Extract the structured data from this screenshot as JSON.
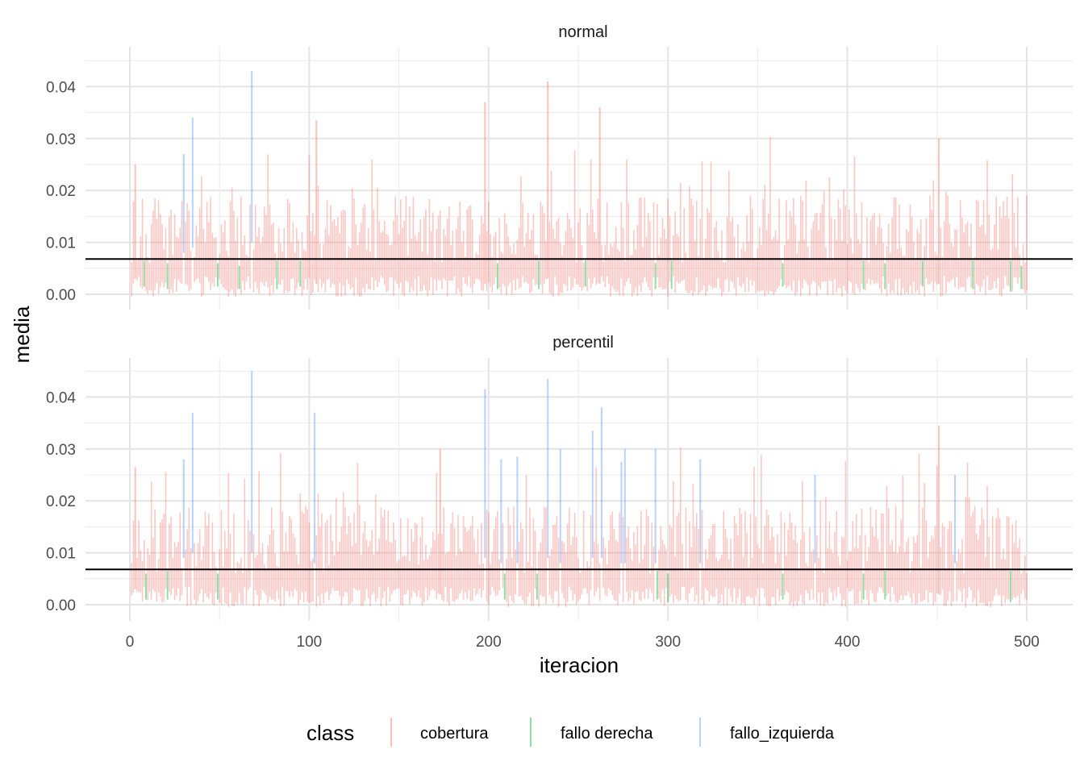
{
  "chart_data": {
    "type": "bar",
    "facets": [
      {
        "label": "normal",
        "hline": 0.0068,
        "highlights": [
          {
            "x": 3,
            "class": "cobertura",
            "lo": 0.003,
            "hi": 0.025
          },
          {
            "x": 30,
            "class": "fallo_izquierda",
            "lo": 0.008,
            "hi": 0.027
          },
          {
            "x": 35,
            "class": "fallo_izquierda",
            "lo": 0.009,
            "hi": 0.034
          },
          {
            "x": 68,
            "class": "fallo_izquierda",
            "lo": 0.01,
            "hi": 0.043
          },
          {
            "x": 104,
            "class": "cobertura",
            "lo": 0.002,
            "hi": 0.0335
          },
          {
            "x": 198,
            "class": "cobertura",
            "lo": 0.002,
            "hi": 0.037
          },
          {
            "x": 233,
            "class": "cobertura",
            "lo": 0.003,
            "hi": 0.041
          },
          {
            "x": 262,
            "class": "cobertura",
            "lo": 0.002,
            "hi": 0.036
          },
          {
            "x": 451,
            "class": "cobertura",
            "lo": 0.002,
            "hi": 0.03
          },
          {
            "x": 8,
            "class": "fallo derecha",
            "lo": 0.0015,
            "hi": 0.0065
          },
          {
            "x": 21,
            "class": "fallo derecha",
            "lo": 0.001,
            "hi": 0.006
          },
          {
            "x": 49,
            "class": "fallo derecha",
            "lo": 0.0015,
            "hi": 0.006
          },
          {
            "x": 61,
            "class": "fallo derecha",
            "lo": 0.001,
            "hi": 0.0055
          },
          {
            "x": 82,
            "class": "fallo derecha",
            "lo": 0.001,
            "hi": 0.0065
          },
          {
            "x": 95,
            "class": "fallo derecha",
            "lo": 0.0015,
            "hi": 0.0065
          },
          {
            "x": 205,
            "class": "fallo derecha",
            "lo": 0.001,
            "hi": 0.006
          },
          {
            "x": 228,
            "class": "fallo derecha",
            "lo": 0.001,
            "hi": 0.0065
          },
          {
            "x": 254,
            "class": "fallo derecha",
            "lo": 0.0015,
            "hi": 0.0065
          },
          {
            "x": 293,
            "class": "fallo derecha",
            "lo": 0.001,
            "hi": 0.006
          },
          {
            "x": 302,
            "class": "fallo derecha",
            "lo": 0.001,
            "hi": 0.0065
          },
          {
            "x": 364,
            "class": "fallo derecha",
            "lo": 0.0015,
            "hi": 0.006
          },
          {
            "x": 409,
            "class": "fallo derecha",
            "lo": 0.001,
            "hi": 0.0065
          },
          {
            "x": 421,
            "class": "fallo derecha",
            "lo": 0.001,
            "hi": 0.006
          },
          {
            "x": 442,
            "class": "fallo derecha",
            "lo": 0.0015,
            "hi": 0.0065
          },
          {
            "x": 470,
            "class": "fallo derecha",
            "lo": 0.001,
            "hi": 0.0065
          },
          {
            "x": 491,
            "class": "fallo derecha",
            "lo": 0.0005,
            "hi": 0.0065
          },
          {
            "x": 497,
            "class": "fallo derecha",
            "lo": 0.001,
            "hi": 0.0055
          }
        ]
      },
      {
        "label": "percentil",
        "hline": 0.0068,
        "highlights": [
          {
            "x": 3,
            "class": "cobertura",
            "lo": 0.003,
            "hi": 0.0265
          },
          {
            "x": 30,
            "class": "fallo_izquierda",
            "lo": 0.009,
            "hi": 0.028
          },
          {
            "x": 35,
            "class": "fallo_izquierda",
            "lo": 0.01,
            "hi": 0.037
          },
          {
            "x": 68,
            "class": "fallo_izquierda",
            "lo": 0.01,
            "hi": 0.045
          },
          {
            "x": 103,
            "class": "fallo_izquierda",
            "lo": 0.008,
            "hi": 0.037
          },
          {
            "x": 173,
            "class": "cobertura",
            "lo": 0.002,
            "hi": 0.03
          },
          {
            "x": 198,
            "class": "fallo_izquierda",
            "lo": 0.009,
            "hi": 0.0415
          },
          {
            "x": 207,
            "class": "fallo_izquierda",
            "lo": 0.008,
            "hi": 0.028
          },
          {
            "x": 216,
            "class": "fallo_izquierda",
            "lo": 0.008,
            "hi": 0.0285
          },
          {
            "x": 233,
            "class": "fallo_izquierda",
            "lo": 0.009,
            "hi": 0.0435
          },
          {
            "x": 240,
            "class": "fallo_izquierda",
            "lo": 0.008,
            "hi": 0.03
          },
          {
            "x": 258,
            "class": "fallo_izquierda",
            "lo": 0.009,
            "hi": 0.0335
          },
          {
            "x": 263,
            "class": "fallo_izquierda",
            "lo": 0.009,
            "hi": 0.038
          },
          {
            "x": 274,
            "class": "fallo_izquierda",
            "lo": 0.008,
            "hi": 0.0275
          },
          {
            "x": 276,
            "class": "fallo_izquierda",
            "lo": 0.008,
            "hi": 0.03
          },
          {
            "x": 293,
            "class": "fallo_izquierda",
            "lo": 0.008,
            "hi": 0.03
          },
          {
            "x": 318,
            "class": "fallo_izquierda",
            "lo": 0.008,
            "hi": 0.028
          },
          {
            "x": 382,
            "class": "fallo_izquierda",
            "lo": 0.008,
            "hi": 0.025
          },
          {
            "x": 451,
            "class": "cobertura",
            "lo": 0.002,
            "hi": 0.0345
          },
          {
            "x": 460,
            "class": "fallo_izquierda",
            "lo": 0.008,
            "hi": 0.025
          },
          {
            "x": 9,
            "class": "fallo derecha",
            "lo": 0.001,
            "hi": 0.006
          },
          {
            "x": 21,
            "class": "fallo derecha",
            "lo": 0.001,
            "hi": 0.0065
          },
          {
            "x": 49,
            "class": "fallo derecha",
            "lo": 0.001,
            "hi": 0.006
          },
          {
            "x": 209,
            "class": "fallo derecha",
            "lo": 0.001,
            "hi": 0.006
          },
          {
            "x": 227,
            "class": "fallo derecha",
            "lo": 0.001,
            "hi": 0.006
          },
          {
            "x": 294,
            "class": "fallo derecha",
            "lo": 0.001,
            "hi": 0.0065
          },
          {
            "x": 300,
            "class": "fallo derecha",
            "lo": 0.0005,
            "hi": 0.006
          },
          {
            "x": 364,
            "class": "fallo derecha",
            "lo": 0.001,
            "hi": 0.006
          },
          {
            "x": 409,
            "class": "fallo derecha",
            "lo": 0.001,
            "hi": 0.006
          },
          {
            "x": 421,
            "class": "fallo derecha",
            "lo": 0.001,
            "hi": 0.0065
          },
          {
            "x": 491,
            "class": "fallo derecha",
            "lo": 0.0005,
            "hi": 0.0065
          }
        ]
      }
    ],
    "x_range": [
      0,
      500
    ],
    "x_ticks": [
      0,
      100,
      200,
      300,
      400,
      500
    ],
    "y_range": [
      -0.0025,
      0.047
    ],
    "y_ticks": [
      0.0,
      0.01,
      0.02,
      0.03,
      0.04
    ],
    "y_tick_labels": [
      "0.00",
      "0.01",
      "0.02",
      "0.03",
      "0.04"
    ],
    "xlabel": "iteracion",
    "ylabel": "media",
    "grid": true,
    "background_range": {
      "lo_min": -0.0005,
      "lo_max": 0.0035,
      "hi_base": 0.0125,
      "hi_spread": 0.013
    },
    "legend": {
      "title": "class",
      "position": "bottom",
      "entries": [
        {
          "label": "cobertura",
          "color": "#F8766D"
        },
        {
          "label": "fallo derecha",
          "color": "#00BA38"
        },
        {
          "label": "fallo_izquierda",
          "color": "#619CFF"
        }
      ]
    },
    "hline_color": "#000000"
  }
}
